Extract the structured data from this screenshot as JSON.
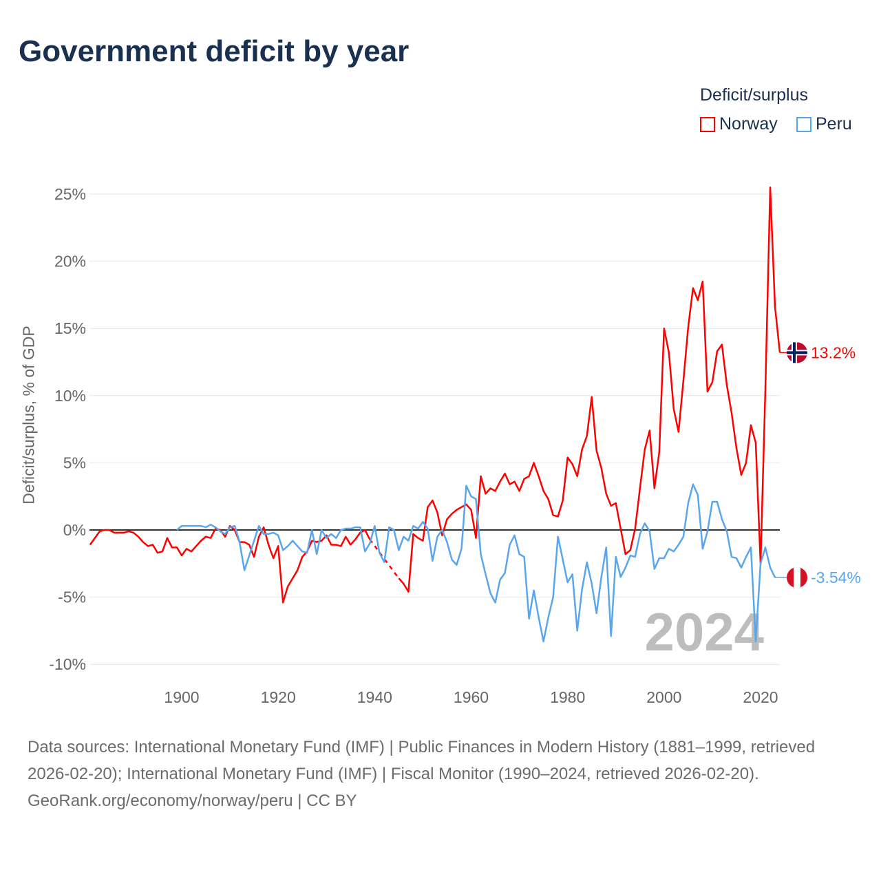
{
  "title": "Government deficit by year",
  "legend": {
    "title": "Deficit/surplus",
    "items": [
      "Norway",
      "Peru"
    ]
  },
  "footer": {
    "sources": "Data sources: International Monetary Fund (IMF) | Public Finances in Modern History (1881–1999, retrieved 2026-02-20); International Monetary Fund (IMF) | Fiscal Monitor (1990–2024, retrieved 2026-02-20).",
    "credit": "GeoRank.org/economy/norway/peru | CC BY"
  },
  "colors": {
    "norway": "#ff0000",
    "peru": "#5aa6ec",
    "zero": "#333333",
    "grid": "#e6e6e6"
  },
  "chart_data": {
    "type": "line",
    "title": "Government deficit by year",
    "xlabel": "",
    "ylabel": "Deficit/surplus, % of GDP",
    "xlim": [
      1881,
      2024
    ],
    "ylim": [
      -11,
      26
    ],
    "yticks": [
      -10,
      -5,
      0,
      5,
      10,
      15,
      20,
      25
    ],
    "ytick_labels": [
      "-10%",
      "-5%",
      "0%",
      "5%",
      "10%",
      "15%",
      "20%",
      "25%"
    ],
    "xticks": [
      1900,
      1920,
      1940,
      1960,
      1980,
      2000,
      2020
    ],
    "xtick_labels": [
      "1900",
      "1920",
      "1940",
      "1960",
      "1980",
      "2000",
      "2020"
    ],
    "current_year": "2024",
    "legend_position": "top-right",
    "series": [
      {
        "name": "Norway",
        "start_year": 1881,
        "end_label": "13.2%",
        "values": [
          -1.1,
          -0.6,
          -0.1,
          0,
          0,
          -0.2,
          -0.2,
          -0.2,
          -0.1,
          -0.2,
          -0.5,
          -0.9,
          -1.2,
          -1.1,
          -1.7,
          -1.6,
          -0.6,
          -1.3,
          -1.3,
          -1.9,
          -1.4,
          -1.6,
          -1.2,
          -0.8,
          -0.5,
          -0.6,
          0.1,
          0,
          -0.5,
          0.3,
          0,
          -0.9,
          -0.9,
          -1.1,
          -2.0,
          -0.5,
          0.2,
          -1.1,
          -2.1,
          -1.2,
          -5.4,
          -4.2,
          -3.6,
          -3.0,
          -2.0,
          -1.6,
          -0.8,
          -0.9,
          -0.8,
          -0.4,
          -1.1,
          -1.1,
          -1.2,
          -0.5,
          -1.1,
          -0.7,
          -0.2,
          0,
          -0.7,
          null,
          null,
          null,
          null,
          null,
          -3.6,
          -4.0,
          -4.6,
          -0.3,
          -0.6,
          -0.8,
          1.7,
          2.2,
          1.3,
          -0.4,
          0.8,
          1.2,
          1.5,
          1.7,
          1.9,
          1.5,
          -0.6,
          4.0,
          2.7,
          3.1,
          2.9,
          3.6,
          4.2,
          3.4,
          3.6,
          2.9,
          3.8,
          4.0,
          5.0,
          4.0,
          2.9,
          2.3,
          1.1,
          1.0,
          2.2,
          5.4,
          4.9,
          4.0,
          6.0,
          7.0,
          9.9,
          5.9,
          4.6,
          2.7,
          1.8,
          2.0,
          0.1,
          -1.8,
          -1.5,
          0.1,
          3.1,
          6.0,
          7.4,
          3.1,
          5.8,
          15.0,
          13.2,
          9.0,
          7.3,
          11.1,
          15.1,
          18.0,
          17.1,
          18.5,
          10.3,
          11.0,
          13.3,
          13.8,
          10.8,
          8.7,
          6.1,
          4.1,
          5.0,
          7.8,
          6.5,
          -2.5,
          10.5,
          25.5,
          16.6,
          13.2
        ]
      },
      {
        "name": "Peru",
        "start_year": 1899,
        "end_label": "-3.54%",
        "values": [
          0,
          0.3,
          0.3,
          0.3,
          0.3,
          0.3,
          0.2,
          0.4,
          0.2,
          -0.1,
          -0.3,
          0.2,
          0.3,
          -0.9,
          -3.0,
          -1.9,
          -0.8,
          0.3,
          -0.3,
          -0.3,
          -0.2,
          -0.4,
          -1.5,
          -1.2,
          -0.8,
          -1.2,
          -1.6,
          -1.7,
          0,
          -1.8,
          0,
          -0.6,
          -0.3,
          -0.6,
          0,
          0.1,
          0.1,
          0.2,
          0.2,
          -1.6,
          -1.0,
          0.3,
          -1.7,
          -2.4,
          0.2,
          0,
          -1.5,
          -0.5,
          -0.8,
          0.3,
          0.1,
          0.6,
          0.1,
          -2.3,
          -0.5,
          0,
          -0.9,
          -2.2,
          -2.6,
          -1.4,
          3.3,
          2.5,
          2.3,
          -1.8,
          -3.3,
          -4.7,
          -5.4,
          -3.7,
          -3.2,
          -1.1,
          -0.4,
          -1.8,
          -2.0,
          -6.6,
          -4.5,
          -6.5,
          -8.3,
          -6.5,
          -5.0,
          -0.5,
          -2.2,
          -3.9,
          -3.3,
          -7.5,
          -4.4,
          -2.4,
          -4.0,
          -6.2,
          -3.5,
          -1.3,
          -7.9,
          -2.0,
          -3.5,
          -2.8,
          -1.9,
          -2.0,
          -0.3,
          0.5,
          -0.1,
          -2.9,
          -2.1,
          -2.1,
          -1.4,
          -1.6,
          -1.1,
          -0.5,
          2.0,
          3.4,
          2.6,
          -1.4,
          -0.1,
          2.1,
          2.1,
          0.8,
          -0.1,
          -2.0,
          -2.1,
          -2.8,
          -2.0,
          -1.3,
          -8.3,
          -2.5,
          -1.3,
          -2.8,
          -3.54
        ]
      }
    ]
  }
}
